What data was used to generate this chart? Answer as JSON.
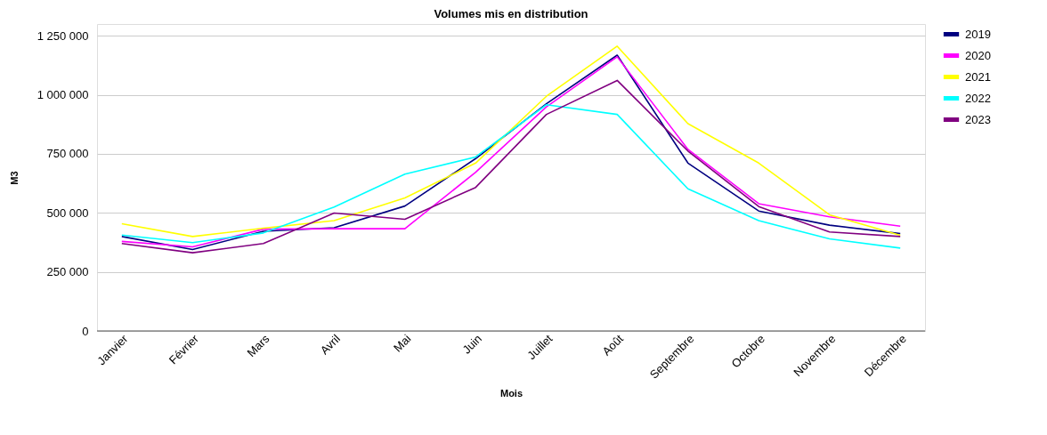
{
  "chart_data": {
    "type": "line",
    "title": "Volumes mis en distribution",
    "xlabel": "Mois",
    "ylabel": "M3",
    "categories": [
      "Janvier",
      "Février",
      "Mars",
      "Avril",
      "Mai",
      "Juin",
      "Juillet",
      "Août",
      "Septembre",
      "Octobre",
      "Novembre",
      "Décembre"
    ],
    "series": [
      {
        "name": "2019",
        "color": "#000080",
        "values": [
          400000,
          345000,
          422000,
          437000,
          529000,
          730000,
          962000,
          1168000,
          711000,
          508000,
          448000,
          412000
        ]
      },
      {
        "name": "2020",
        "color": "#ff00ff",
        "values": [
          379000,
          356000,
          431000,
          433000,
          433000,
          672000,
          949000,
          1161000,
          769000,
          539000,
          483000,
          444000
        ]
      },
      {
        "name": "2021",
        "color": "#ffff00",
        "values": [
          454000,
          400000,
          435000,
          467000,
          563000,
          711000,
          994000,
          1206000,
          878000,
          711000,
          492000,
          405000
        ]
      },
      {
        "name": "2022",
        "color": "#00ffff",
        "values": [
          406000,
          374000,
          415000,
          525000,
          664000,
          737000,
          958000,
          917000,
          602000,
          467000,
          390000,
          351000
        ]
      },
      {
        "name": "2023",
        "color": "#800080",
        "values": [
          370000,
          331000,
          370000,
          499000,
          473000,
          608000,
          917000,
          1061000,
          762000,
          527000,
          419000,
          400000
        ]
      }
    ],
    "ylim": [
      0,
      1300000
    ],
    "yticks": [
      0,
      {
        "value": 250000,
        "label": "250 000"
      },
      {
        "value": 500000,
        "label": "500 000"
      },
      {
        "value": 750000,
        "label": "750 000"
      },
      {
        "value": 1000000,
        "label": "1 000 000"
      },
      {
        "value": 1250000,
        "label": "1 250 000"
      }
    ],
    "grid": "y",
    "legend": "top right",
    "marker": "none",
    "line_style": "solid"
  }
}
